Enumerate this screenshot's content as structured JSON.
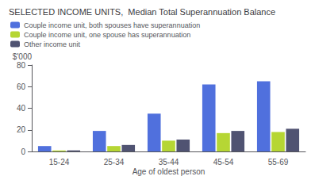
{
  "chart_data": {
    "type": "bar",
    "title": "SELECTED INCOME UNITS,  Median Total Superannuation Balance",
    "xlabel": "Age of oldest person",
    "ylabel": "$'000",
    "categories": [
      "15-24",
      "25-34",
      "35-44",
      "45-54",
      "55-69"
    ],
    "series": [
      {
        "name": "Couple income unit, both spouses have superannuation",
        "values": [
          5,
          19,
          35,
          62,
          65
        ]
      },
      {
        "name": "Couple income unit, one spouse has superannuation",
        "values": [
          1,
          5,
          10,
          17,
          18
        ]
      },
      {
        "name": "Other income unit",
        "values": [
          1,
          6,
          11,
          19,
          21
        ]
      }
    ],
    "ylim": [
      0,
      80
    ],
    "yticks": [
      0,
      20,
      40,
      60,
      80
    ],
    "grid": false,
    "legend": "upper left"
  }
}
